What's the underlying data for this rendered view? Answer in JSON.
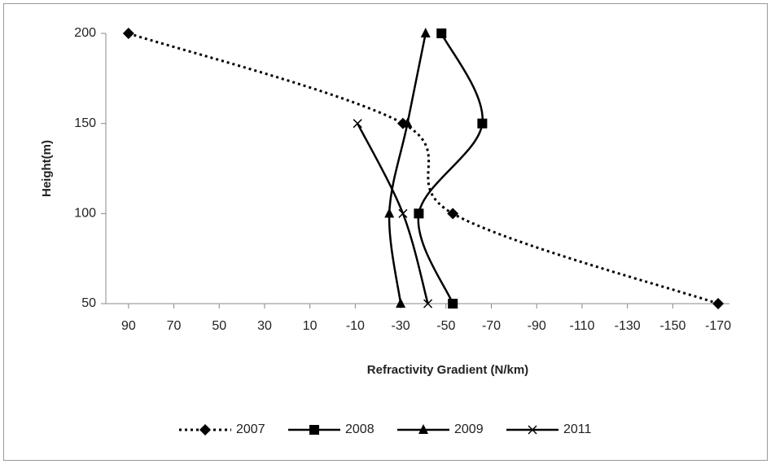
{
  "chart_data": {
    "type": "line",
    "x_label": "Refractivity Gradient (N/km)",
    "y_label": "Height(m)",
    "y": [
      200,
      150,
      100,
      50
    ],
    "series": [
      {
        "name": "2007",
        "color": "#000000",
        "marker": "diamond",
        "dash": "dotted",
        "x": [
          90,
          -31,
          -53,
          -170
        ]
      },
      {
        "name": "2008",
        "color": "#000000",
        "marker": "square",
        "dash": "solid",
        "x": [
          -48,
          -66,
          -38,
          -53
        ]
      },
      {
        "name": "2009",
        "color": "#000000",
        "marker": "triangle",
        "dash": "solid",
        "x": [
          -41,
          -33,
          -25,
          -30
        ]
      },
      {
        "name": "2011",
        "color": "#000000",
        "marker": "x",
        "dash": "solid",
        "x": [
          null,
          -11,
          -31,
          -42
        ]
      }
    ],
    "xlim": [
      100,
      -175
    ],
    "ylim": [
      50,
      200
    ],
    "xticks": [
      90,
      70,
      50,
      30,
      10,
      -10,
      -30,
      -50,
      -70,
      -90,
      -110,
      -130,
      -150,
      -170
    ],
    "yticks": [
      50,
      100,
      150,
      200
    ],
    "smooth": true,
    "legend": "bottom"
  }
}
